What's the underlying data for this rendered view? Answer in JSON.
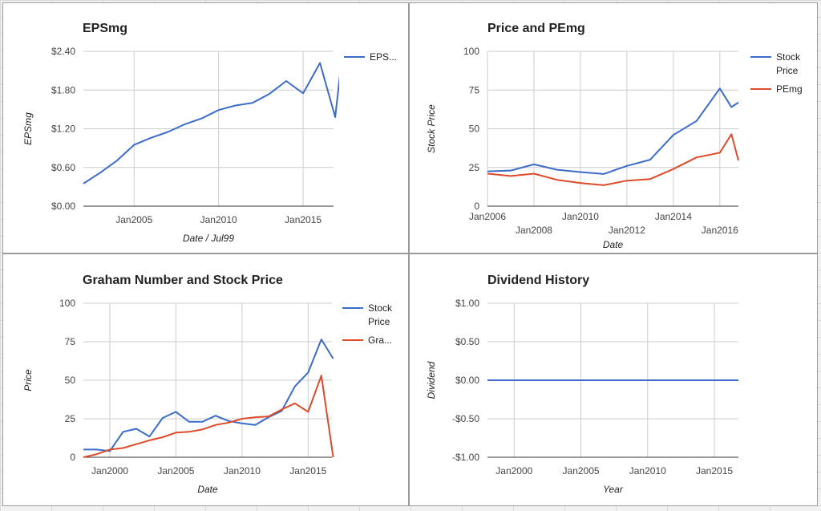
{
  "chart_data": [
    {
      "type": "line",
      "title": "EPSmg",
      "xlabel": "Date / Jul99",
      "ylabel": "EPSmg",
      "ylim": [
        0,
        2.4
      ],
      "yticks": [
        0,
        0.6,
        1.2,
        1.8,
        2.4
      ],
      "ytick_labels": [
        "$0.00",
        "$0.60",
        "$1.20",
        "$1.80",
        "$2.40"
      ],
      "xlim": [
        2002.0,
        2016.8
      ],
      "xticks": [
        2005,
        2010,
        2015
      ],
      "xtick_labels": [
        "Jan2005",
        "Jan2010",
        "Jan2015"
      ],
      "legend_position": "right",
      "grid": true,
      "series": [
        {
          "name": "EPS...",
          "color": "#3c6cc8",
          "x": [
            2002.0,
            2003.0,
            2004.0,
            2005.0,
            2006.0,
            2007.0,
            2008.0,
            2009.0,
            2010.0,
            2011.0,
            2012.0,
            2013.0,
            2014.0,
            2015.0,
            2016.0,
            2016.9,
            2017.3
          ],
          "y": [
            0.35,
            0.52,
            0.71,
            0.95,
            1.06,
            1.15,
            1.27,
            1.36,
            1.49,
            1.56,
            1.6,
            1.74,
            1.94,
            1.75,
            2.22,
            1.38,
            2.31
          ]
        }
      ]
    },
    {
      "type": "line",
      "title": "Price and PEmg",
      "xlabel": "Date",
      "ylabel": "Stock Price",
      "ylim": [
        0,
        100
      ],
      "yticks": [
        0,
        25,
        50,
        75,
        100
      ],
      "ytick_labels": [
        "0",
        "25",
        "50",
        "75",
        "100"
      ],
      "xlim": [
        2006.0,
        2016.8
      ],
      "xticks": [
        2006,
        2008,
        2010,
        2012,
        2014,
        2016
      ],
      "xtick_labels": [
        "Jan2006",
        "Jan2008",
        "Jan2010",
        "Jan2012",
        "Jan2014",
        "Jan2016"
      ],
      "legend_position": "right",
      "grid": true,
      "series": [
        {
          "name": "Stock Price",
          "color": "#3c6cc8",
          "x": [
            2006.0,
            2007.0,
            2008.0,
            2009.0,
            2010.0,
            2011.0,
            2012.0,
            2013.0,
            2014.0,
            2015.0,
            2016.0,
            2016.5,
            2016.8
          ],
          "y": [
            22.5,
            23.0,
            27.0,
            23.5,
            22.0,
            20.8,
            26.0,
            30.0,
            46.0,
            55.0,
            76.0,
            64.0,
            67.0
          ]
        },
        {
          "name": "PEmg",
          "color": "#dd4b2a",
          "x": [
            2006.0,
            2007.0,
            2008.0,
            2009.0,
            2010.0,
            2011.0,
            2012.0,
            2013.0,
            2014.0,
            2015.0,
            2016.0,
            2016.5,
            2016.8
          ],
          "y": [
            21.0,
            19.5,
            21.0,
            17.0,
            15.0,
            13.5,
            16.5,
            17.5,
            24.0,
            31.5,
            34.5,
            46.5,
            29.5
          ]
        }
      ]
    },
    {
      "type": "line",
      "title": "Graham Number and Stock Price",
      "xlabel": "Date",
      "ylabel": "Price",
      "ylim": [
        0,
        100
      ],
      "yticks": [
        0,
        25,
        50,
        75,
        100
      ],
      "ytick_labels": [
        "0",
        "25",
        "50",
        "75",
        "100"
      ],
      "xlim": [
        1998.0,
        2016.8
      ],
      "xticks": [
        2000,
        2005,
        2010,
        2015
      ],
      "xtick_labels": [
        "Jan2000",
        "Jan2005",
        "Jan2010",
        "Jan2015"
      ],
      "legend_position": "right",
      "grid": true,
      "series": [
        {
          "name": "Stock Price",
          "color": "#3c6cc8",
          "x": [
            1998.0,
            1999.0,
            2000.0,
            2001.0,
            2002.0,
            2003.0,
            2004.0,
            2005.0,
            2006.0,
            2007.0,
            2008.0,
            2009.0,
            2010.0,
            2011.0,
            2012.0,
            2013.0,
            2014.0,
            2015.0,
            2016.0,
            2016.9
          ],
          "y": [
            5.0,
            5.0,
            4.0,
            16.5,
            18.5,
            13.5,
            25.5,
            29.5,
            23.0,
            23.0,
            27.0,
            23.5,
            22.0,
            21.0,
            26.0,
            30.0,
            46.0,
            55.0,
            76.5,
            64.0
          ]
        },
        {
          "name": "Gra...",
          "color": "#dd4b2a",
          "x": [
            1998.0,
            1999.0,
            2000.0,
            2001.0,
            2002.0,
            2003.0,
            2004.0,
            2005.0,
            2006.0,
            2007.0,
            2008.0,
            2009.0,
            2010.0,
            2011.0,
            2012.0,
            2013.0,
            2014.0,
            2015.0,
            2016.0,
            2016.9
          ],
          "y": [
            0.0,
            2.0,
            5.0,
            6.0,
            8.5,
            11.0,
            13.0,
            16.0,
            16.5,
            18.0,
            21.0,
            22.5,
            25.0,
            26.0,
            26.5,
            31.0,
            35.0,
            29.5,
            53.0,
            0.0
          ]
        }
      ]
    },
    {
      "type": "line",
      "title": "Dividend History",
      "xlabel": "Year",
      "ylabel": "Dividend",
      "ylim": [
        -1.0,
        1.0
      ],
      "yticks": [
        -1.0,
        -0.5,
        0.0,
        0.5,
        1.0
      ],
      "ytick_labels": [
        "-$1.00",
        "-$0.50",
        "$0.00",
        "$0.50",
        "$1.00"
      ],
      "xlim": [
        1998.0,
        2016.8
      ],
      "xticks": [
        2000,
        2005,
        2010,
        2015
      ],
      "xtick_labels": [
        "Jan2000",
        "Jan2005",
        "Jan2010",
        "Jan2015"
      ],
      "legend_position": "none",
      "grid": true,
      "series": [
        {
          "color": "#3c6cc8",
          "x": [
            1998.0,
            2016.8
          ],
          "y": [
            0.0,
            0.0
          ]
        }
      ]
    }
  ]
}
